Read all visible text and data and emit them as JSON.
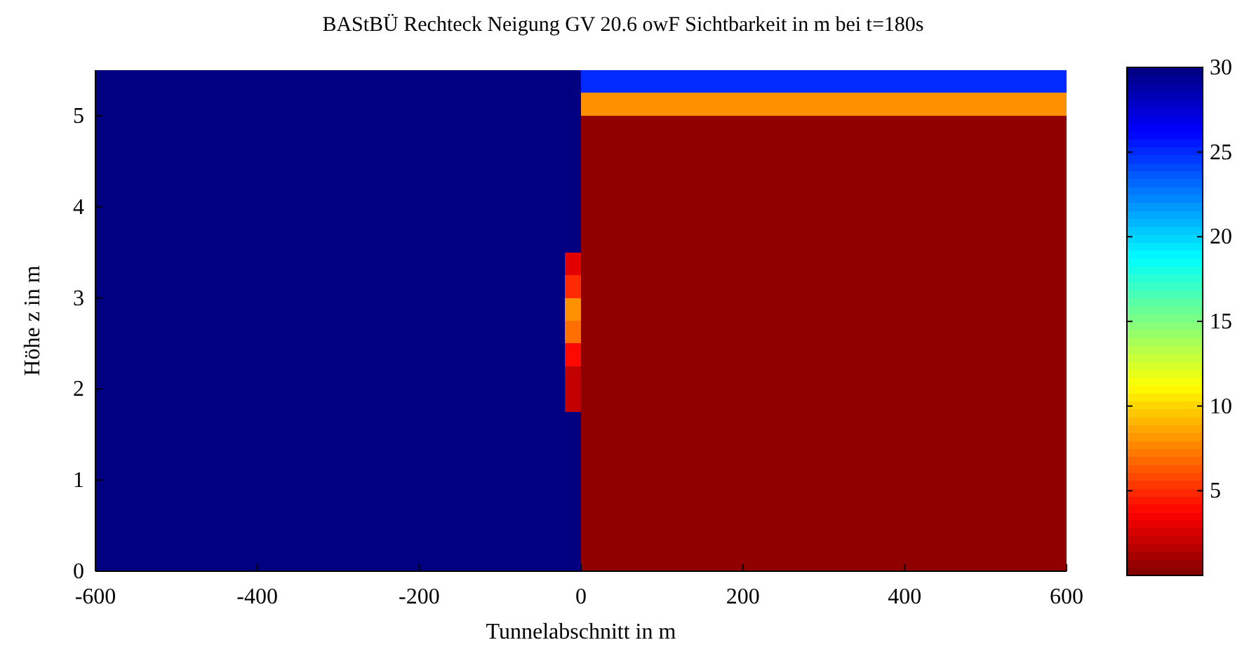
{
  "chart_data": {
    "type": "heatmap",
    "title": "BAStBÜ Rechteck Neigung GV 20.6 owF Sichtbarkeit in m bei t=180s",
    "xlabel": "Tunnelabschnitt in m",
    "ylabel": "Höhe z in m",
    "x": [
      -590,
      -570,
      -550,
      -530,
      -510,
      -490,
      -470,
      -450,
      -430,
      -410,
      -390,
      -370,
      -350,
      -330,
      -310,
      -290,
      -270,
      -250,
      -230,
      -210,
      -190,
      -170,
      -150,
      -130,
      -110,
      -90,
      -70,
      -50,
      -30,
      -10,
      10,
      30,
      50,
      70,
      90,
      110,
      130,
      150,
      170,
      190,
      210,
      230,
      250,
      270,
      290,
      310,
      330,
      350,
      370,
      390,
      410,
      430,
      450,
      470,
      490,
      510,
      530,
      550,
      570,
      590
    ],
    "xlim": [
      -600,
      600
    ],
    "xticks": [
      -600,
      -400,
      -200,
      0,
      200,
      400,
      600
    ],
    "ylim": [
      0,
      5.5
    ],
    "yticks": [
      0,
      1,
      2,
      3,
      4,
      5
    ],
    "clim": [
      0,
      30
    ],
    "cticks": [
      5,
      10,
      15,
      20,
      25,
      30
    ],
    "cells": [
      [
        30,
        30,
        30,
        30,
        30,
        30,
        30,
        30,
        30,
        30,
        30,
        30,
        30,
        30,
        30,
        30,
        30,
        30,
        30,
        30,
        30,
        30,
        30,
        30,
        30,
        30,
        30,
        30,
        30,
        30,
        25,
        25,
        25,
        25,
        25,
        25,
        25,
        25,
        25,
        25,
        25,
        25,
        25,
        25,
        25,
        25,
        25,
        25,
        25,
        25,
        25,
        25,
        25,
        25,
        25,
        25,
        25,
        25,
        25,
        25
      ],
      [
        30,
        30,
        30,
        30,
        30,
        30,
        30,
        30,
        30,
        30,
        30,
        30,
        30,
        30,
        30,
        30,
        30,
        30,
        30,
        30,
        30,
        30,
        30,
        30,
        30,
        30,
        30,
        30,
        30,
        30,
        8,
        8,
        8,
        8,
        8,
        8,
        8,
        8,
        8,
        8,
        8,
        8,
        8,
        8,
        8,
        8,
        8,
        8,
        8,
        8,
        8,
        8,
        8,
        8,
        8,
        8,
        8,
        8,
        8,
        8
      ],
      [
        30,
        30,
        30,
        30,
        30,
        30,
        30,
        30,
        30,
        30,
        30,
        30,
        30,
        30,
        30,
        30,
        30,
        30,
        30,
        30,
        30,
        30,
        30,
        30,
        30,
        30,
        30,
        30,
        30,
        30,
        0.5,
        0.5,
        0.5,
        0.5,
        0.5,
        0.5,
        0.5,
        0.5,
        0.5,
        0.5,
        0.5,
        0.5,
        0.5,
        0.5,
        0.5,
        0.5,
        0.5,
        0.5,
        0.5,
        0.5,
        0.5,
        0.5,
        0.5,
        0.5,
        0.5,
        0.5,
        0.5,
        0.5,
        0.5,
        0.5
      ],
      [
        30,
        30,
        30,
        30,
        30,
        30,
        30,
        30,
        30,
        30,
        30,
        30,
        30,
        30,
        30,
        30,
        30,
        30,
        30,
        30,
        30,
        30,
        30,
        30,
        30,
        30,
        30,
        30,
        30,
        30,
        0.5,
        0.5,
        0.5,
        0.5,
        0.5,
        0.5,
        0.5,
        0.5,
        0.5,
        0.5,
        0.5,
        0.5,
        0.5,
        0.5,
        0.5,
        0.5,
        0.5,
        0.5,
        0.5,
        0.5,
        0.5,
        0.5,
        0.5,
        0.5,
        0.5,
        0.5,
        0.5,
        0.5,
        0.5,
        0.5
      ],
      [
        30,
        30,
        30,
        30,
        30,
        30,
        30,
        30,
        30,
        30,
        30,
        30,
        30,
        30,
        30,
        30,
        30,
        30,
        30,
        30,
        30,
        30,
        30,
        30,
        30,
        30,
        30,
        30,
        30,
        30,
        0.5,
        0.5,
        0.5,
        0.5,
        0.5,
        0.5,
        0.5,
        0.5,
        0.5,
        0.5,
        0.5,
        0.5,
        0.5,
        0.5,
        0.5,
        0.5,
        0.5,
        0.5,
        0.5,
        0.5,
        0.5,
        0.5,
        0.5,
        0.5,
        0.5,
        0.5,
        0.5,
        0.5,
        0.5,
        0.5
      ],
      [
        30,
        30,
        30,
        30,
        30,
        30,
        30,
        30,
        30,
        30,
        30,
        30,
        30,
        30,
        30,
        30,
        30,
        30,
        30,
        30,
        30,
        30,
        30,
        30,
        30,
        30,
        30,
        30,
        30,
        30,
        0.5,
        0.5,
        0.5,
        0.5,
        0.5,
        0.5,
        0.5,
        0.5,
        0.5,
        0.5,
        0.5,
        0.5,
        0.5,
        0.5,
        0.5,
        0.5,
        0.5,
        0.5,
        0.5,
        0.5,
        0.5,
        0.5,
        0.5,
        0.5,
        0.5,
        0.5,
        0.5,
        0.5,
        0.5,
        0.5
      ],
      [
        30,
        30,
        30,
        30,
        30,
        30,
        30,
        30,
        30,
        30,
        30,
        30,
        30,
        30,
        30,
        30,
        30,
        30,
        30,
        30,
        30,
        30,
        30,
        30,
        30,
        30,
        30,
        30,
        30,
        30,
        0.5,
        0.5,
        0.5,
        0.5,
        0.5,
        0.5,
        0.5,
        0.5,
        0.5,
        0.5,
        0.5,
        0.5,
        0.5,
        0.5,
        0.5,
        0.5,
        0.5,
        0.5,
        0.5,
        0.5,
        0.5,
        0.5,
        0.5,
        0.5,
        0.5,
        0.5,
        0.5,
        0.5,
        0.5,
        0.5
      ],
      [
        30,
        30,
        30,
        30,
        30,
        30,
        30,
        30,
        30,
        30,
        30,
        30,
        30,
        30,
        30,
        30,
        30,
        30,
        30,
        30,
        30,
        30,
        30,
        30,
        30,
        30,
        30,
        30,
        30,
        30,
        0.5,
        0.5,
        0.5,
        0.5,
        0.5,
        0.5,
        0.5,
        0.5,
        0.5,
        0.5,
        0.5,
        0.5,
        0.5,
        0.5,
        0.5,
        0.5,
        0.5,
        0.5,
        0.5,
        0.5,
        0.5,
        0.5,
        0.5,
        0.5,
        0.5,
        0.5,
        0.5,
        0.5,
        0.5,
        0.5
      ],
      [
        30,
        30,
        30,
        30,
        30,
        30,
        30,
        30,
        30,
        30,
        30,
        30,
        30,
        30,
        30,
        30,
        30,
        30,
        30,
        30,
        30,
        30,
        30,
        30,
        30,
        30,
        30,
        30,
        30,
        3,
        0.5,
        0.5,
        0.5,
        0.5,
        0.5,
        0.5,
        0.5,
        0.5,
        0.5,
        0.5,
        0.5,
        0.5,
        0.5,
        0.5,
        0.5,
        0.5,
        0.5,
        0.5,
        0.5,
        0.5,
        0.5,
        0.5,
        0.5,
        0.5,
        0.5,
        0.5,
        0.5,
        0.5,
        0.5,
        0.5
      ],
      [
        30,
        30,
        30,
        30,
        30,
        30,
        30,
        30,
        30,
        30,
        30,
        30,
        30,
        30,
        30,
        30,
        30,
        30,
        30,
        30,
        30,
        30,
        30,
        30,
        30,
        30,
        30,
        30,
        30,
        5,
        0.5,
        0.5,
        0.5,
        0.5,
        0.5,
        0.5,
        0.5,
        0.5,
        0.5,
        0.5,
        0.5,
        0.5,
        0.5,
        0.5,
        0.5,
        0.5,
        0.5,
        0.5,
        0.5,
        0.5,
        0.5,
        0.5,
        0.5,
        0.5,
        0.5,
        0.5,
        0.5,
        0.5,
        0.5,
        0.5
      ],
      [
        30,
        30,
        30,
        30,
        30,
        30,
        30,
        30,
        30,
        30,
        30,
        30,
        30,
        30,
        30,
        30,
        30,
        30,
        30,
        30,
        30,
        30,
        30,
        30,
        30,
        30,
        30,
        30,
        30,
        8,
        0.5,
        0.5,
        0.5,
        0.5,
        0.5,
        0.5,
        0.5,
        0.5,
        0.5,
        0.5,
        0.5,
        0.5,
        0.5,
        0.5,
        0.5,
        0.5,
        0.5,
        0.5,
        0.5,
        0.5,
        0.5,
        0.5,
        0.5,
        0.5,
        0.5,
        0.5,
        0.5,
        0.5,
        0.5,
        0.5
      ],
      [
        30,
        30,
        30,
        30,
        30,
        30,
        30,
        30,
        30,
        30,
        30,
        30,
        30,
        30,
        30,
        30,
        30,
        30,
        30,
        30,
        30,
        30,
        30,
        30,
        30,
        30,
        30,
        30,
        30,
        7,
        0.5,
        0.5,
        0.5,
        0.5,
        0.5,
        0.5,
        0.5,
        0.5,
        0.5,
        0.5,
        0.5,
        0.5,
        0.5,
        0.5,
        0.5,
        0.5,
        0.5,
        0.5,
        0.5,
        0.5,
        0.5,
        0.5,
        0.5,
        0.5,
        0.5,
        0.5,
        0.5,
        0.5,
        0.5,
        0.5
      ],
      [
        30,
        30,
        30,
        30,
        30,
        30,
        30,
        30,
        30,
        30,
        30,
        30,
        30,
        30,
        30,
        30,
        30,
        30,
        30,
        30,
        30,
        30,
        30,
        30,
        30,
        30,
        30,
        30,
        30,
        4,
        0.5,
        0.5,
        0.5,
        0.5,
        0.5,
        0.5,
        0.5,
        0.5,
        0.5,
        0.5,
        0.5,
        0.5,
        0.5,
        0.5,
        0.5,
        0.5,
        0.5,
        0.5,
        0.5,
        0.5,
        0.5,
        0.5,
        0.5,
        0.5,
        0.5,
        0.5,
        0.5,
        0.5,
        0.5,
        0.5
      ],
      [
        30,
        30,
        30,
        30,
        30,
        30,
        30,
        30,
        30,
        30,
        30,
        30,
        30,
        30,
        30,
        30,
        30,
        30,
        30,
        30,
        30,
        30,
        30,
        30,
        30,
        30,
        30,
        30,
        30,
        2,
        0.5,
        0.5,
        0.5,
        0.5,
        0.5,
        0.5,
        0.5,
        0.5,
        0.5,
        0.5,
        0.5,
        0.5,
        0.5,
        0.5,
        0.5,
        0.5,
        0.5,
        0.5,
        0.5,
        0.5,
        0.5,
        0.5,
        0.5,
        0.5,
        0.5,
        0.5,
        0.5,
        0.5,
        0.5,
        0.5
      ],
      [
        30,
        30,
        30,
        30,
        30,
        30,
        30,
        30,
        30,
        30,
        30,
        30,
        30,
        30,
        30,
        30,
        30,
        30,
        30,
        30,
        30,
        30,
        30,
        30,
        30,
        30,
        30,
        30,
        30,
        2,
        0.5,
        0.5,
        0.5,
        0.5,
        0.5,
        0.5,
        0.5,
        0.5,
        0.5,
        0.5,
        0.5,
        0.5,
        0.5,
        0.5,
        0.5,
        0.5,
        0.5,
        0.5,
        0.5,
        0.5,
        0.5,
        0.5,
        0.5,
        0.5,
        0.5,
        0.5,
        0.5,
        0.5,
        0.5,
        0.5
      ],
      [
        30,
        30,
        30,
        30,
        30,
        30,
        30,
        30,
        30,
        30,
        30,
        30,
        30,
        30,
        30,
        30,
        30,
        30,
        30,
        30,
        30,
        30,
        30,
        30,
        30,
        30,
        30,
        30,
        30,
        30,
        0.5,
        0.5,
        0.5,
        0.5,
        0.5,
        0.5,
        0.5,
        0.5,
        0.5,
        0.5,
        0.5,
        0.5,
        0.5,
        0.5,
        0.5,
        0.5,
        0.5,
        0.5,
        0.5,
        0.5,
        0.5,
        0.5,
        0.5,
        0.5,
        0.5,
        0.5,
        0.5,
        0.5,
        0.5,
        0.5
      ],
      [
        30,
        30,
        30,
        30,
        30,
        30,
        30,
        30,
        30,
        30,
        30,
        30,
        30,
        30,
        30,
        30,
        30,
        30,
        30,
        30,
        30,
        30,
        30,
        30,
        30,
        30,
        30,
        30,
        30,
        30,
        0.5,
        0.5,
        0.5,
        0.5,
        0.5,
        0.5,
        0.5,
        0.5,
        0.5,
        0.5,
        0.5,
        0.5,
        0.5,
        0.5,
        0.5,
        0.5,
        0.5,
        0.5,
        0.5,
        0.5,
        0.5,
        0.5,
        0.5,
        0.5,
        0.5,
        0.5,
        0.5,
        0.5,
        0.5,
        0.5
      ],
      [
        30,
        30,
        30,
        30,
        30,
        30,
        30,
        30,
        30,
        30,
        30,
        30,
        30,
        30,
        30,
        30,
        30,
        30,
        30,
        30,
        30,
        30,
        30,
        30,
        30,
        30,
        30,
        30,
        30,
        30,
        0.5,
        0.5,
        0.5,
        0.5,
        0.5,
        0.5,
        0.5,
        0.5,
        0.5,
        0.5,
        0.5,
        0.5,
        0.5,
        0.5,
        0.5,
        0.5,
        0.5,
        0.5,
        0.5,
        0.5,
        0.5,
        0.5,
        0.5,
        0.5,
        0.5,
        0.5,
        0.5,
        0.5,
        0.5,
        0.5
      ],
      [
        30,
        30,
        30,
        30,
        30,
        30,
        30,
        30,
        30,
        30,
        30,
        30,
        30,
        30,
        30,
        30,
        30,
        30,
        30,
        30,
        30,
        30,
        30,
        30,
        30,
        30,
        30,
        30,
        30,
        30,
        0.5,
        0.5,
        0.5,
        0.5,
        0.5,
        0.5,
        0.5,
        0.5,
        0.5,
        0.5,
        0.5,
        0.5,
        0.5,
        0.5,
        0.5,
        0.5,
        0.5,
        0.5,
        0.5,
        0.5,
        0.5,
        0.5,
        0.5,
        0.5,
        0.5,
        0.5,
        0.5,
        0.5,
        0.5,
        0.5
      ],
      [
        30,
        30,
        30,
        30,
        30,
        30,
        30,
        30,
        30,
        30,
        30,
        30,
        30,
        30,
        30,
        30,
        30,
        30,
        30,
        30,
        30,
        30,
        30,
        30,
        30,
        30,
        30,
        30,
        30,
        30,
        0.5,
        0.5,
        0.5,
        0.5,
        0.5,
        0.5,
        0.5,
        0.5,
        0.5,
        0.5,
        0.5,
        0.5,
        0.5,
        0.5,
        0.5,
        0.5,
        0.5,
        0.5,
        0.5,
        0.5,
        0.5,
        0.5,
        0.5,
        0.5,
        0.5,
        0.5,
        0.5,
        0.5,
        0.5,
        0.5
      ],
      [
        30,
        30,
        30,
        30,
        30,
        30,
        30,
        30,
        30,
        30,
        30,
        30,
        30,
        30,
        30,
        30,
        30,
        30,
        30,
        30,
        30,
        30,
        30,
        30,
        30,
        30,
        30,
        30,
        30,
        30,
        0.5,
        0.5,
        0.5,
        0.5,
        0.5,
        0.5,
        0.5,
        0.5,
        0.5,
        0.5,
        0.5,
        0.5,
        0.5,
        0.5,
        0.5,
        0.5,
        0.5,
        0.5,
        0.5,
        0.5,
        0.5,
        0.5,
        0.5,
        0.5,
        0.5,
        0.5,
        0.5,
        0.5,
        0.5,
        0.5
      ],
      [
        30,
        30,
        30,
        30,
        30,
        30,
        30,
        30,
        30,
        30,
        30,
        30,
        30,
        30,
        30,
        30,
        30,
        30,
        30,
        30,
        30,
        30,
        30,
        30,
        30,
        30,
        30,
        30,
        30,
        30,
        0.5,
        0.5,
        0.5,
        0.5,
        0.5,
        0.5,
        0.5,
        0.5,
        0.5,
        0.5,
        0.5,
        0.5,
        0.5,
        0.5,
        0.5,
        0.5,
        0.5,
        0.5,
        0.5,
        0.5,
        0.5,
        0.5,
        0.5,
        0.5,
        0.5,
        0.5,
        0.5,
        0.5,
        0.5,
        0.5
      ]
    ]
  }
}
